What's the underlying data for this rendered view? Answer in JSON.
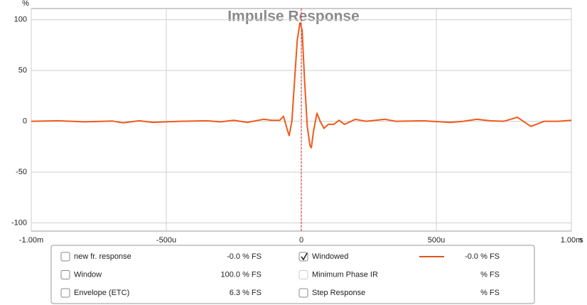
{
  "chart_data": {
    "type": "line",
    "title": "Impulse Response",
    "ylabel": "%",
    "xlabel": "s",
    "x": [
      -1.0,
      -0.9,
      -0.8,
      -0.7,
      -0.66,
      -0.6,
      -0.55,
      -0.45,
      -0.35,
      -0.3,
      -0.25,
      -0.2,
      -0.14,
      -0.11,
      -0.08,
      -0.066,
      -0.05,
      -0.045,
      -0.035,
      -0.025,
      -0.015,
      -0.005,
      0.003,
      0.012,
      0.022,
      0.032,
      0.037,
      0.045,
      0.058,
      0.07,
      0.084,
      0.1,
      0.12,
      0.14,
      0.16,
      0.2,
      0.24,
      0.31,
      0.35,
      0.45,
      0.55,
      0.6,
      0.65,
      0.7,
      0.75,
      0.8,
      0.85,
      0.9,
      0.95,
      1.0
    ],
    "series": [
      {
        "name": "Windowed",
        "color": "#f05a1a",
        "values": [
          0,
          0.5,
          -0.5,
          0.3,
          -1.5,
          0.5,
          -1,
          0,
          0.5,
          -0.5,
          1,
          -1,
          2,
          1,
          1,
          5,
          -10,
          -14,
          0,
          40,
          80,
          97,
          90,
          40,
          -5,
          -24,
          -26,
          -10,
          8,
          0,
          -7,
          -3,
          -3,
          1,
          -3,
          2,
          0,
          2,
          0,
          0.5,
          -1,
          0,
          2,
          0.5,
          0,
          4,
          -5,
          0,
          0,
          1
        ]
      }
    ],
    "xlim": [
      -1.0,
      1.0
    ],
    "xticks": [
      {
        "value": -1.0,
        "label": "-1.00m"
      },
      {
        "value": -0.5,
        "label": "-500u"
      },
      0,
      {
        "value": 0.5,
        "label": "500u"
      },
      {
        "value": 1.0,
        "label": "1.00m"
      }
    ],
    "ylim": [
      -108,
      111
    ],
    "yticks": [
      -100,
      -50,
      0,
      50,
      100
    ],
    "grid": true,
    "marker_x": 0,
    "marker_color": "#d0201a"
  },
  "legend_panel": {
    "items": [
      {
        "label": "new fr. response",
        "value": "-0.0 % FS",
        "checked": false,
        "color": "#c8302a"
      },
      {
        "label": "Window",
        "value": "100.0 % FS",
        "checked": false,
        "color": "#1a1ac0"
      },
      {
        "label": "Envelope (ETC)",
        "value": "6.3 % FS",
        "checked": false,
        "color": "#8b1a1a"
      },
      {
        "label": "Windowed",
        "value": "-0.0 % FS",
        "checked": true,
        "color": "#e0541b"
      },
      {
        "label": "Minimum Phase IR",
        "value": "% FS",
        "checked": false,
        "color": "#999999"
      },
      {
        "label": "Step Response",
        "value": "% FS",
        "checked": false,
        "color": "#8b1a1a"
      }
    ]
  }
}
